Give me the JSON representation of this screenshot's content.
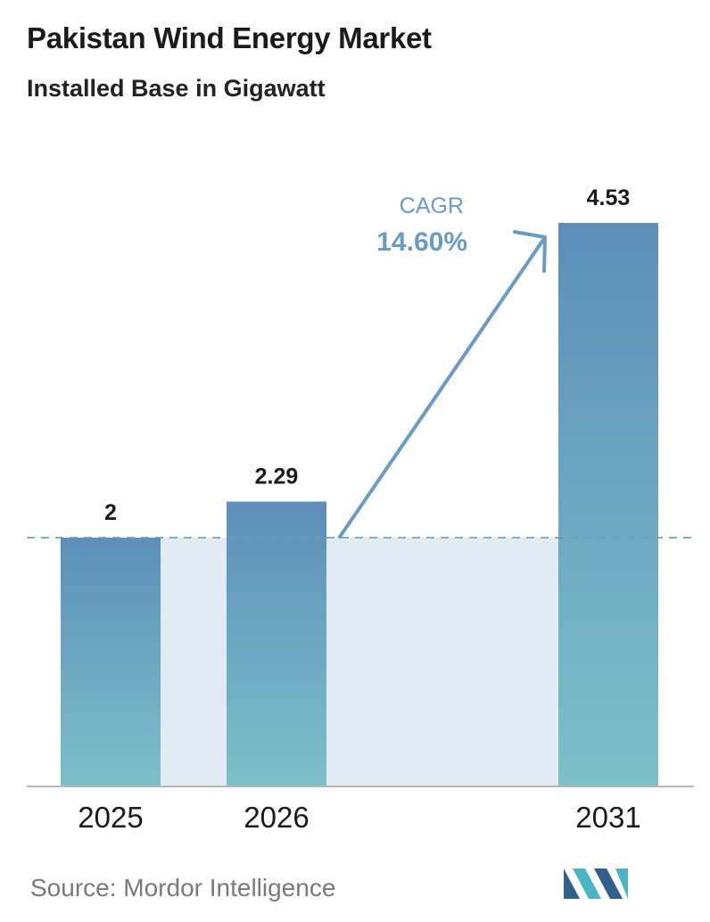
{
  "header": {
    "title": "Pakistan Wind Energy Market",
    "subtitle": "Installed Base in Gigawatt"
  },
  "chart_data": {
    "type": "bar",
    "title": "Pakistan Wind Energy Market",
    "subtitle": "Installed Base in Gigawatt",
    "categories": [
      "2025",
      "2026",
      "2031"
    ],
    "values": [
      2,
      2.29,
      4.53
    ],
    "value_labels": [
      "2",
      "2.29",
      "4.53"
    ],
    "xlabel": "",
    "ylabel": "",
    "ylim": [
      0,
      4.53
    ],
    "grid": false,
    "legend": "none",
    "reference_line_value": 2,
    "annotation": {
      "label": "CAGR",
      "value": "14.60%"
    },
    "colors": {
      "bar_top": "#5d8fb9",
      "bar_bottom": "#7cc0c9",
      "shade": "#e2ebf3",
      "annotation": "#6a9cc2",
      "dashed_line": "#6a9cc2"
    }
  },
  "footer": {
    "source": "Source:  Mordor Intelligence"
  },
  "logo": {
    "icon": "mordor-intelligence-logo-icon",
    "colors": [
      "#2f5f8a",
      "#4ab6c4"
    ]
  }
}
